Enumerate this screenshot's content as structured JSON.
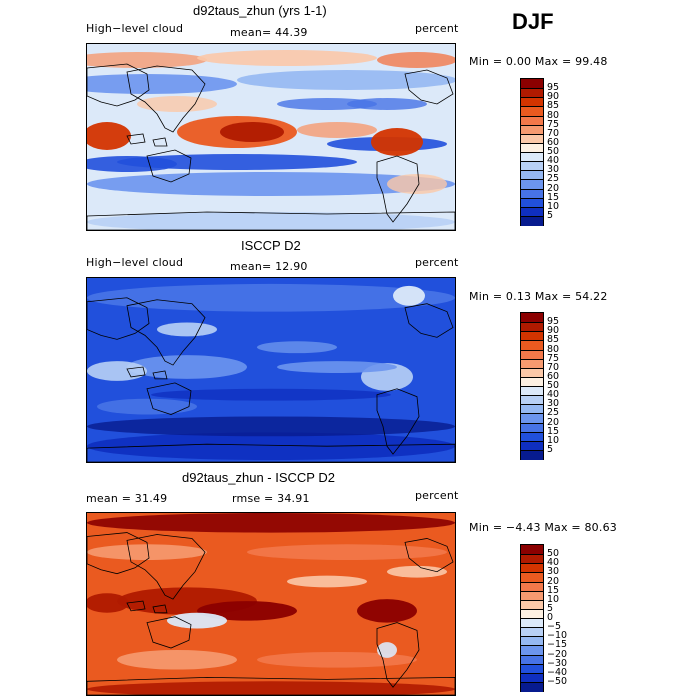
{
  "season": "DJF",
  "panels": [
    {
      "title": "d92taus_zhun (yrs 1-1)",
      "left_label": "High−level cloud",
      "center_label": "mean=  44.39",
      "right_label": "percent",
      "minmax": "Min =    0.00 Max =  99.48",
      "colorbar_labels": [
        "95",
        "90",
        "85",
        "80",
        "75",
        "70",
        "60",
        "50",
        "40",
        "30",
        "25",
        "20",
        "15",
        "10",
        "5"
      ],
      "field_bias": "model"
    },
    {
      "title": "ISCCP D2",
      "left_label": "High−level cloud",
      "center_label": "mean=  12.90",
      "right_label": "percent",
      "minmax": "Min =   0.13 Max =  54.22",
      "colorbar_labels": [
        "95",
        "90",
        "85",
        "80",
        "75",
        "70",
        "60",
        "50",
        "40",
        "30",
        "25",
        "20",
        "15",
        "10",
        "5"
      ],
      "field_bias": "obs"
    },
    {
      "title": "d92taus_zhun - ISCCP D2",
      "left_label": "mean =   31.49",
      "center_label": "rmse =   34.91",
      "right_label": "percent",
      "minmax": "Min =  −4.43 Max =  80.63",
      "colorbar_labels": [
        "50",
        "40",
        "30",
        "20",
        "15",
        "10",
        "5",
        "0",
        "−5",
        "−10",
        "−15",
        "−20",
        "−30",
        "−40",
        "−50"
      ],
      "field_bias": "diff"
    }
  ],
  "colors": {
    "scale": [
      "#8b0000",
      "#b01a00",
      "#d33400",
      "#ea5a20",
      "#f3784a",
      "#f69a70",
      "#fbc8a8",
      "#fdf0e2",
      "#dce9f9",
      "#b8d0f5",
      "#95b8f2",
      "#6c95ee",
      "#4773e6",
      "#2150dc",
      "#0f2fc0",
      "#071b8f"
    ]
  }
}
